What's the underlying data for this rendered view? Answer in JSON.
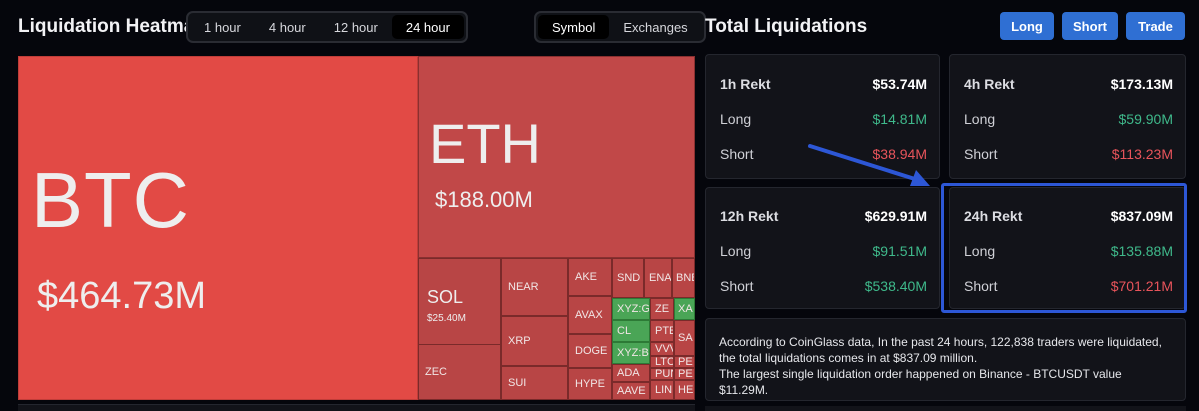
{
  "header": {
    "title": "Liquidation Heatmap",
    "time_tabs": [
      {
        "label": "1 hour"
      },
      {
        "label": "4 hour"
      },
      {
        "label": "12 hour"
      },
      {
        "label": "24 hour",
        "active": true
      }
    ],
    "view_tabs": [
      {
        "label": "Symbol",
        "active": true
      },
      {
        "label": "Exchanges"
      }
    ]
  },
  "treemap": {
    "tiles": [
      {
        "symbol": "BTC",
        "value": "$464.73M"
      },
      {
        "symbol": "ETH",
        "value": "$188.00M"
      },
      {
        "symbol": "SOL",
        "value": "$25.40M"
      },
      {
        "symbol": "NEAR"
      },
      {
        "symbol": "XRP"
      },
      {
        "symbol": "SUI"
      },
      {
        "symbol": "ZEC"
      },
      {
        "symbol": "AKE"
      },
      {
        "symbol": "AVAX"
      },
      {
        "symbol": "DOGE"
      },
      {
        "symbol": "HYPE"
      },
      {
        "symbol": "SND"
      },
      {
        "symbol": "ENA"
      },
      {
        "symbol": "BNB"
      },
      {
        "symbol": "XYZ:G"
      },
      {
        "symbol": "ZE"
      },
      {
        "symbol": "XA"
      },
      {
        "symbol": "CL"
      },
      {
        "symbol": "PTE"
      },
      {
        "symbol": "XYZ:B"
      },
      {
        "symbol": "VVV"
      },
      {
        "symbol": "SA"
      },
      {
        "symbol": "ADA"
      },
      {
        "symbol": "LTC"
      },
      {
        "symbol": "PE"
      },
      {
        "symbol": "PUN"
      },
      {
        "symbol": "PE"
      },
      {
        "symbol": "AAVE"
      },
      {
        "symbol": "LIN"
      },
      {
        "symbol": "HE"
      }
    ]
  },
  "panel": {
    "title": "Total Liquidations",
    "buttons": {
      "long": "Long",
      "short": "Short",
      "trade": "Trade"
    },
    "cards": [
      {
        "head": "1h Rekt",
        "total": "$53.74M",
        "long_label": "Long",
        "long": "$14.81M",
        "short_label": "Short",
        "short": "$38.94M"
      },
      {
        "head": "4h Rekt",
        "total": "$173.13M",
        "long_label": "Long",
        "long": "$59.90M",
        "short_label": "Short",
        "short": "$113.23M"
      },
      {
        "head": "12h Rekt",
        "total": "$629.91M",
        "long_label": "Long",
        "long": "$91.51M",
        "short_label": "Short",
        "short": "$538.40M"
      },
      {
        "head": "24h Rekt",
        "total": "$837.09M",
        "long_label": "Long",
        "long": "$135.88M",
        "short_label": "Short",
        "short": "$701.21M"
      }
    ],
    "info_line1": "According to CoinGlass data, In the past 24 hours, 122,838 traders were liquidated, the total liquidations comes in at $837.09 million.",
    "info_line2": "The largest single liquidation order happened on Binance - BTCUSDT value $11.29M."
  },
  "colors": {
    "accent": "#2f6fd3",
    "up": "#3fb98b",
    "down": "#e8545b",
    "highlight": "#2d57d6"
  }
}
